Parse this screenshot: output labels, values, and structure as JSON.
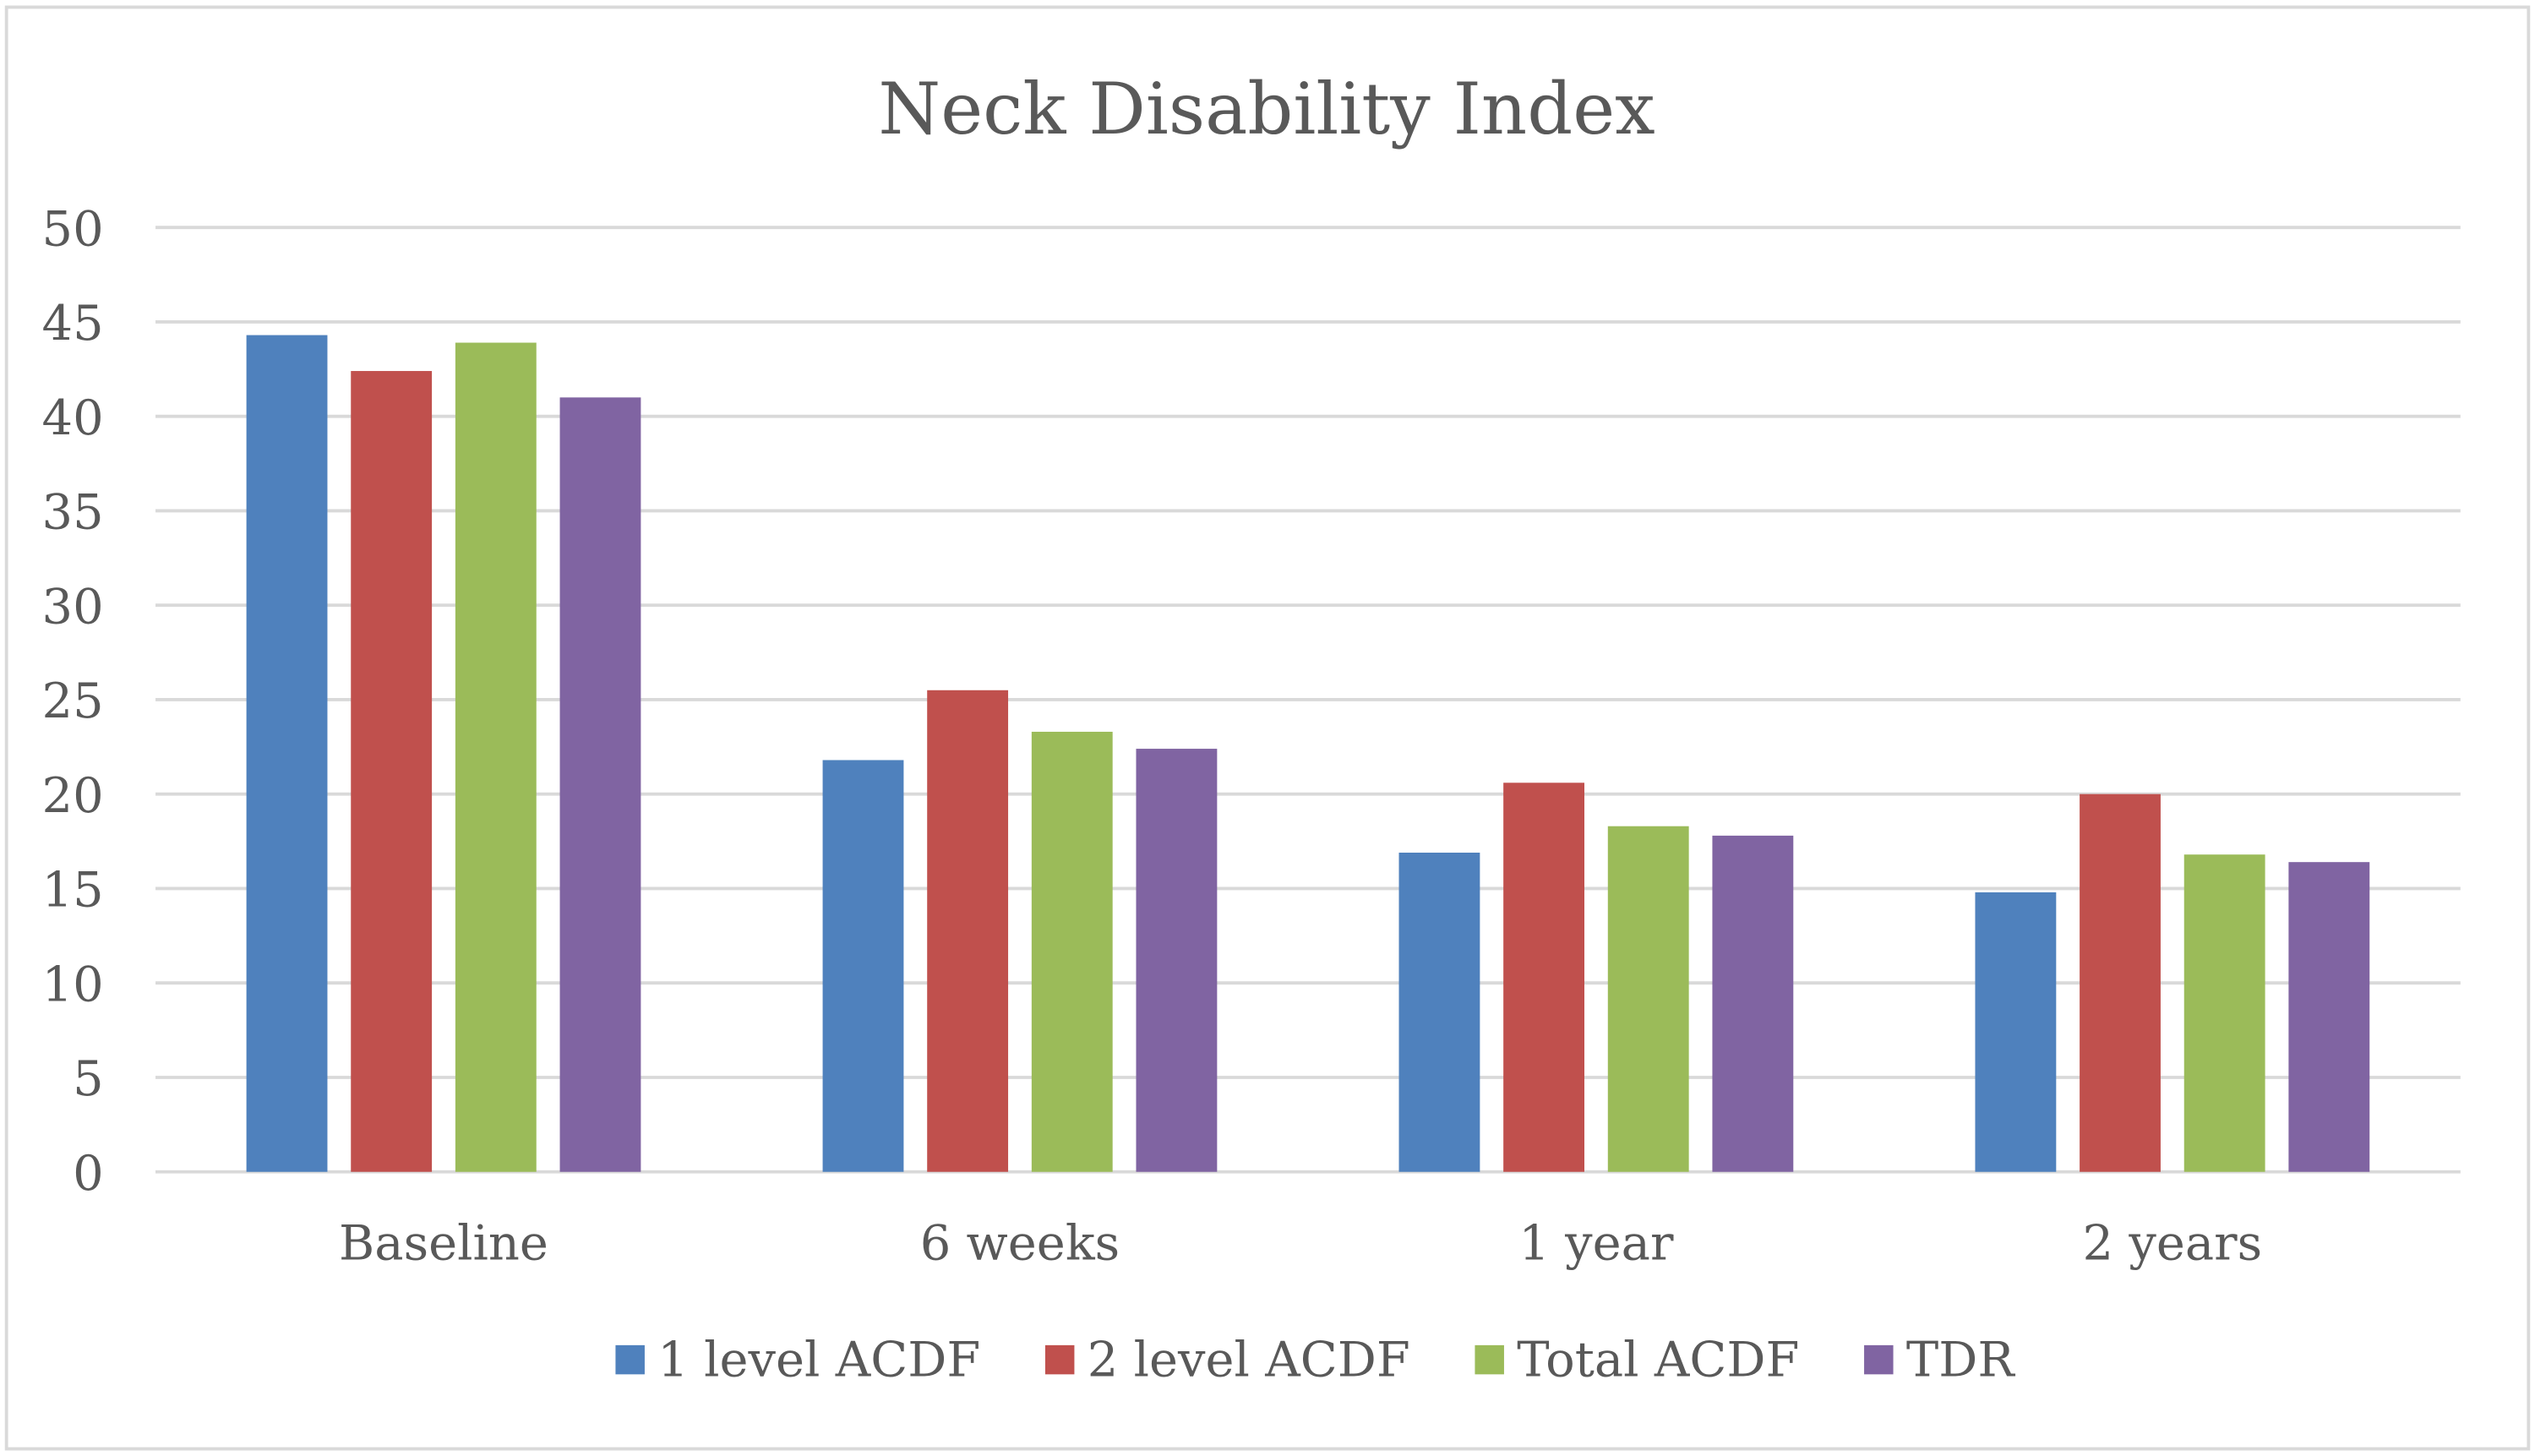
{
  "chart_data": {
    "type": "bar",
    "title": "Neck Disability Index",
    "xlabel": "",
    "ylabel": "",
    "ylim": [
      0,
      50
    ],
    "yticks": [
      "0",
      "5",
      "10",
      "15",
      "20",
      "25",
      "30",
      "35",
      "40",
      "45",
      "50"
    ],
    "grid": true,
    "legend_position": "bottom",
    "categories": [
      "Baseline",
      "6 weeks",
      "1 year",
      "2 years"
    ],
    "series": [
      {
        "name": "1 level ACDF",
        "color": "#4F81BD",
        "values": [
          44.3,
          21.8,
          16.9,
          14.8
        ]
      },
      {
        "name": "2 level ACDF",
        "color": "#C0504D",
        "values": [
          42.4,
          25.5,
          20.6,
          20.0
        ]
      },
      {
        "name": "Total ACDF",
        "color": "#9BBB59",
        "values": [
          43.9,
          23.3,
          18.3,
          16.8
        ]
      },
      {
        "name": "TDR",
        "color": "#8064A2",
        "values": [
          41.0,
          22.4,
          17.8,
          16.4
        ]
      }
    ]
  }
}
